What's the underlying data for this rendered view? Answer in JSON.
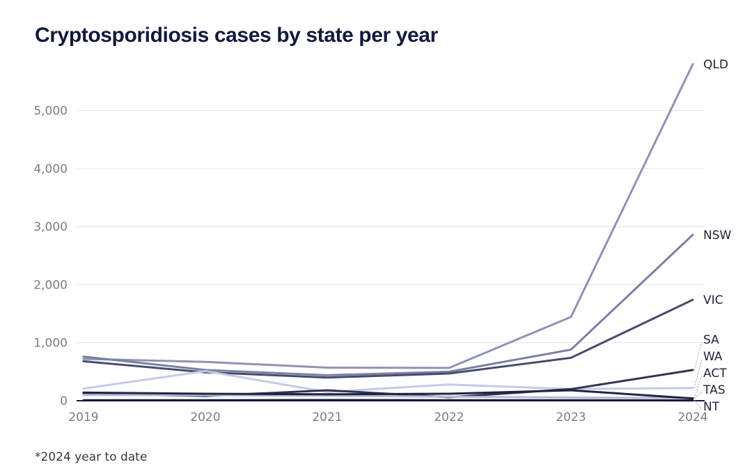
{
  "title": "Cryptosporidiosis cases by state per year",
  "footnote": "*2024 year to date",
  "chart_data": {
    "type": "line",
    "title": "Cryptosporidiosis cases by state per year",
    "xlabel": "",
    "ylabel": "",
    "x": [
      2019,
      2020,
      2021,
      2022,
      2023,
      2024
    ],
    "x_tick_labels": [
      "2019",
      "2020",
      "2021",
      "2022",
      "2023",
      "2024"
    ],
    "ylim": [
      0,
      5800
    ],
    "y_ticks": [
      0,
      1000,
      2000,
      3000,
      4000,
      5000
    ],
    "y_tick_labels": [
      "0",
      "1,000",
      "2,000",
      "3,000",
      "4,000",
      "5,000"
    ],
    "grid": "horizontal",
    "legend": "direct labels at right end of lines",
    "series": [
      {
        "name": "QLD",
        "color": "#8e93b3",
        "values": [
          720,
          670,
          570,
          565,
          1445,
          5800
        ]
      },
      {
        "name": "NSW",
        "color": "#7a80a2",
        "values": [
          760,
          530,
          440,
          500,
          880,
          2860
        ]
      },
      {
        "name": "VIC",
        "color": "#474c6c",
        "values": [
          680,
          490,
          400,
          470,
          740,
          1740
        ]
      },
      {
        "name": "WA",
        "color": "#c5cae8",
        "values": [
          210,
          510,
          150,
          280,
          200,
          220
        ]
      },
      {
        "name": "SA",
        "color": "#2e3452",
        "values": [
          125,
          80,
          180,
          60,
          200,
          530
        ]
      },
      {
        "name": "ACT",
        "color": "#b6bad6",
        "values": [
          100,
          95,
          85,
          70,
          55,
          45
        ]
      },
      {
        "name": "TAS",
        "color": "#1f2540",
        "values": [
          140,
          120,
          110,
          120,
          180,
          40
        ]
      },
      {
        "name": "NT",
        "color": "#121a3a",
        "values": [
          10,
          8,
          12,
          10,
          8,
          5
        ]
      }
    ]
  }
}
